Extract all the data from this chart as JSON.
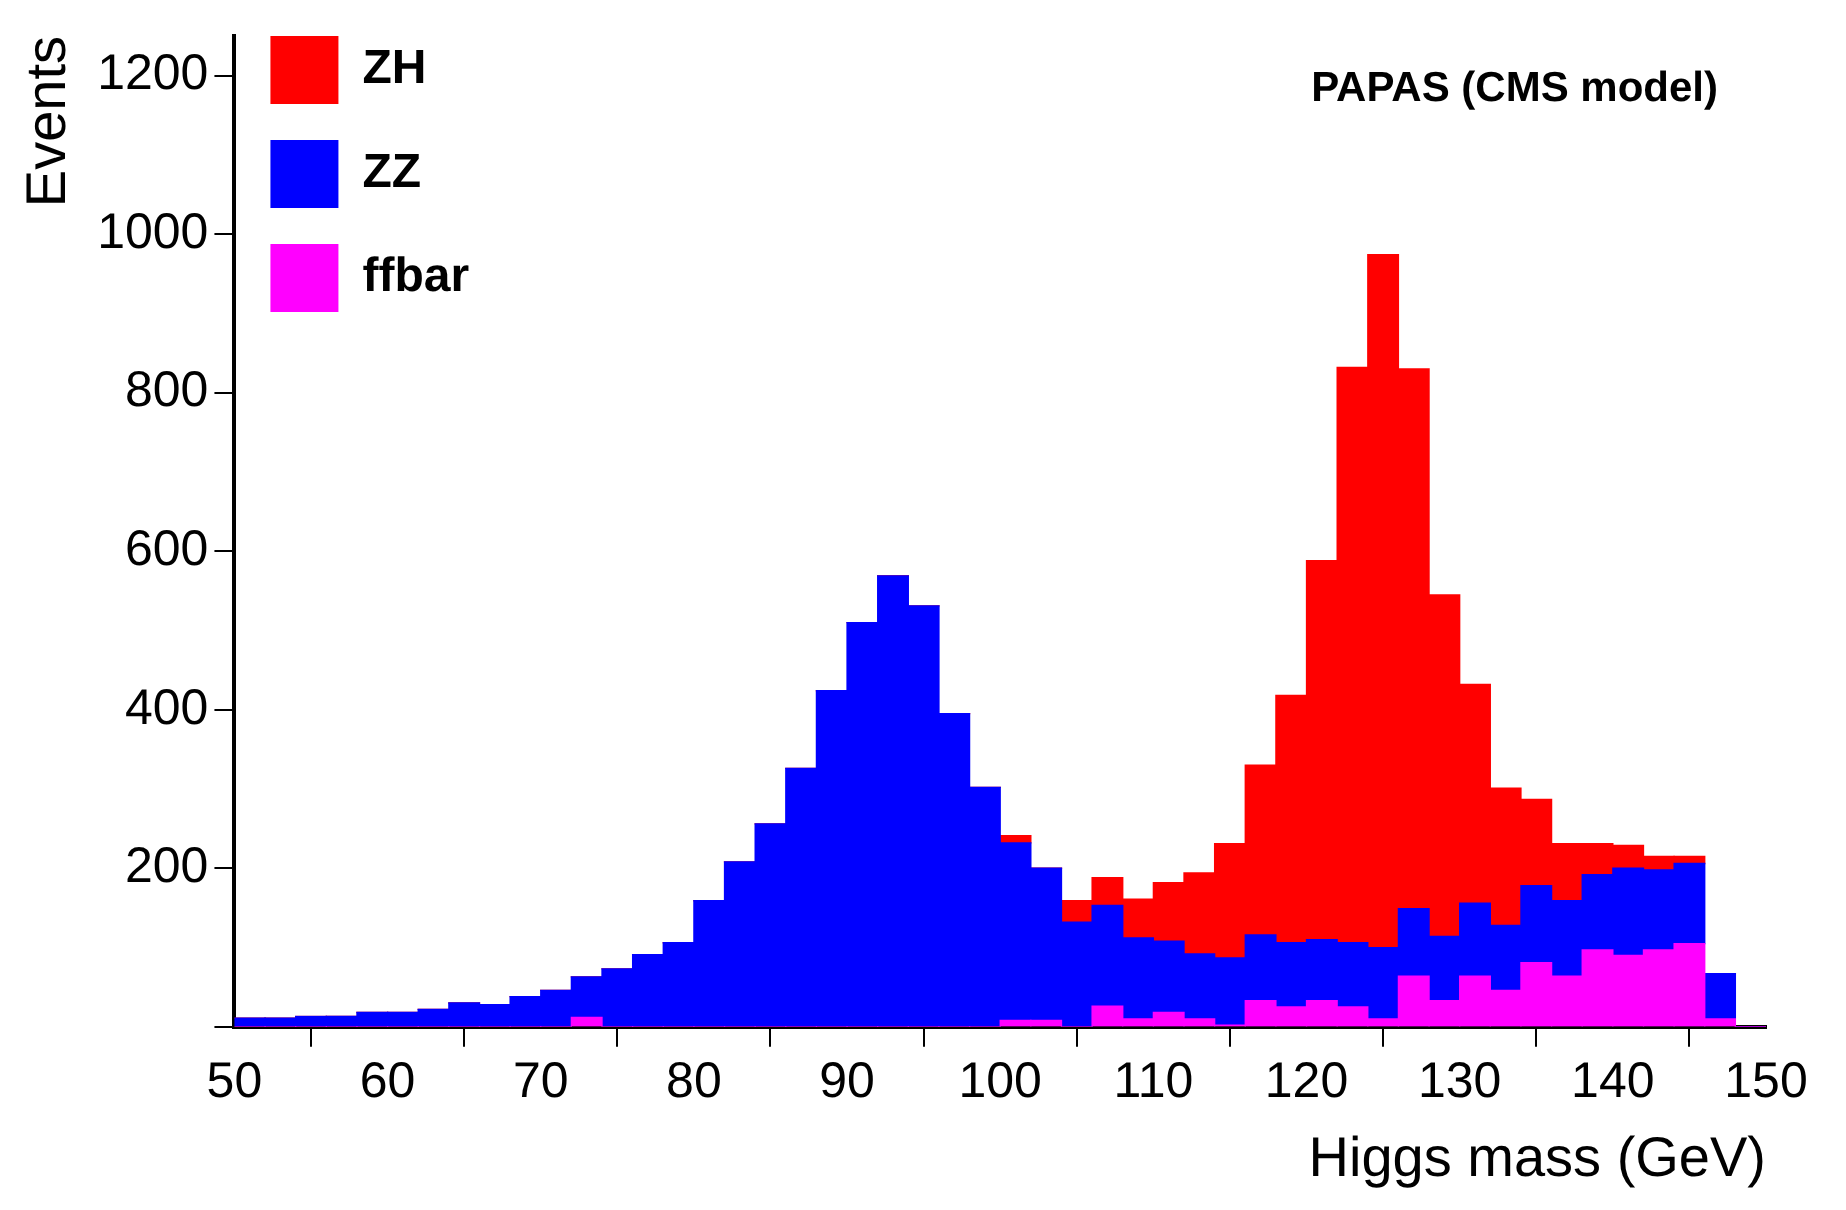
{
  "chart_data": {
    "type": "bar",
    "xlabel": "Higgs mass (GeV)",
    "ylabel": "Events",
    "annotations": [
      "PAPAS (CMS model)"
    ],
    "x": [
      51,
      53,
      55,
      57,
      59,
      61,
      63,
      65,
      67,
      69,
      71,
      73,
      75,
      77,
      79,
      81,
      83,
      85,
      87,
      89,
      91,
      93,
      95,
      97,
      99,
      101,
      103,
      105,
      107,
      109,
      111,
      113,
      115,
      117,
      119,
      121,
      123,
      125,
      127,
      129,
      131,
      133,
      135,
      137,
      139,
      141,
      143,
      145,
      147,
      149
    ],
    "stacked": true,
    "series": [
      {
        "name": "ffbar",
        "color": "#ff00ff",
        "values": [
          0,
          0,
          0,
          0,
          0,
          0,
          0,
          0,
          0,
          0,
          0,
          12,
          0,
          0,
          0,
          0,
          0,
          0,
          0,
          0,
          0,
          0,
          0,
          0,
          0,
          8,
          8,
          0,
          26,
          10,
          18,
          10,
          2,
          33,
          25,
          33,
          25,
          10,
          64,
          33,
          64,
          46,
          81,
          64,
          97,
          90,
          97,
          105,
          10,
          0
        ]
      },
      {
        "name": "ZZ",
        "color": "#0000ff",
        "values": [
          11,
          11,
          13,
          13,
          18,
          18,
          22,
          30,
          28,
          38,
          46,
          51,
          73,
          91,
          106,
          159,
          208,
          256,
          326,
          424,
          510,
          569,
          531,
          395,
          302,
          224,
          192,
          132,
          127,
          102,
          90,
          82,
          85,
          83,
          81,
          77,
          81,
          90,
          85,
          81,
          92,
          82,
          97,
          95,
          95,
          110,
          101,
          101,
          57,
          0
        ]
      },
      {
        "name": "ZH",
        "color": "#ff0000",
        "values": [
          0,
          0,
          0,
          0,
          0,
          0,
          0,
          0,
          0,
          0,
          0,
          0,
          0,
          0,
          0,
          0,
          0,
          0,
          0,
          0,
          0,
          0,
          0,
          0,
          0,
          9,
          0,
          27,
          35,
          49,
          74,
          102,
          144,
          214,
          312,
          478,
          726,
          874,
          681,
          431,
          276,
          173,
          109,
          72,
          39,
          29,
          17,
          9,
          0,
          0
        ]
      }
    ],
    "xlim": [
      50,
      150
    ],
    "xticks": [
      50,
      60,
      70,
      80,
      90,
      100,
      110,
      120,
      130,
      140,
      150
    ],
    "ylim": [
      0,
      1250
    ],
    "yticks": [
      {
        "value": 0,
        "label": null
      },
      200,
      400,
      600,
      800,
      1000,
      1200
    ],
    "grid": false,
    "legend": "top left"
  }
}
